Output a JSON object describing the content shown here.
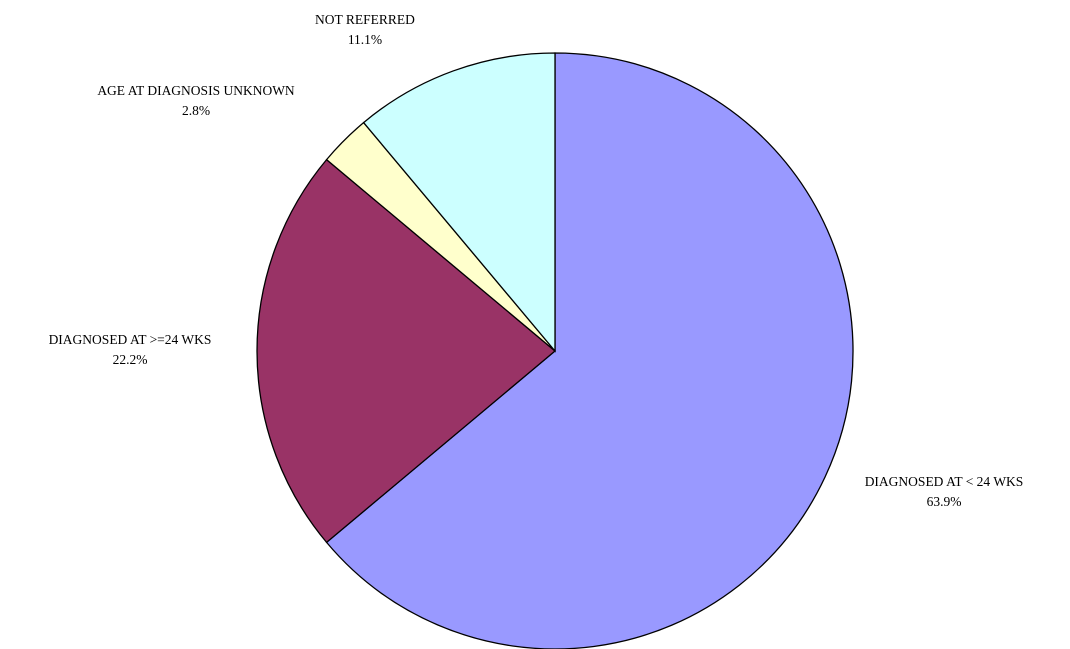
{
  "chart_data": {
    "type": "pie",
    "title": "",
    "start_angle": "12 o'clock",
    "direction": "clockwise",
    "legend": "none",
    "slices": [
      {
        "label": "DIAGNOSED AT < 24 WKS",
        "value": 63.9,
        "value_label": "63.9%",
        "color": "#9999ff"
      },
      {
        "label": "DIAGNOSED AT >=24 WKS",
        "value": 22.2,
        "value_label": "22.2%",
        "color": "#993366"
      },
      {
        "label": "AGE AT DIAGNOSIS UNKNOWN",
        "value": 2.8,
        "value_label": "2.8%",
        "color": "#ffffcc"
      },
      {
        "label": "NOT REFERRED",
        "value": 11.1,
        "value_label": "11.1%",
        "color": "#ccffff"
      }
    ]
  }
}
